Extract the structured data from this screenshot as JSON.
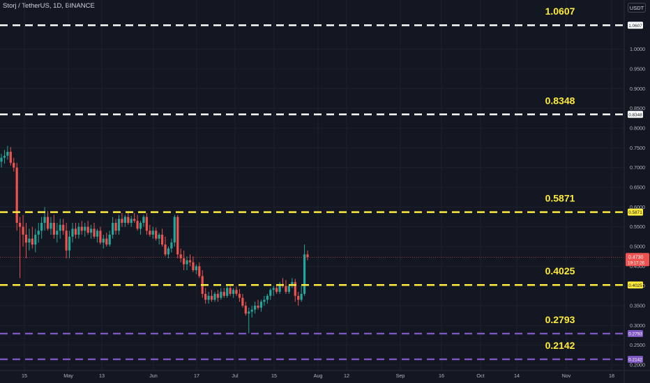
{
  "header": {
    "symbol_title": "Storj / TetherUS, 1D, BINANCE",
    "currency_label": "USDT"
  },
  "colors": {
    "background": "#131722",
    "grid": "#1e222d",
    "axis_text": "#b2b5be",
    "up": "#26a69a",
    "down": "#ef5350",
    "white_level": "#ffffff",
    "yellow_level": "#ffeb3b",
    "purple_level": "#7e57c2",
    "level_label": "#ffeb3b"
  },
  "chart_data": {
    "type": "candlestick",
    "title": "Storj / TetherUS, 1D, BINANCE",
    "y_axis": {
      "ticks": [
        "1.0000",
        "0.9500",
        "0.9000",
        "0.8500",
        "0.8000",
        "0.7500",
        "0.7000",
        "0.6500",
        "0.6000",
        "0.5500",
        "0.5000",
        "0.4500",
        "0.4000",
        "0.3500",
        "0.3000",
        "0.2500",
        "0.2000"
      ],
      "range": [
        0.195,
        1.115
      ]
    },
    "x_axis": {
      "labels": [
        "15",
        "May",
        "13",
        "Jun",
        "17",
        "Jul",
        "15",
        "Aug",
        "12",
        "Sep",
        "16",
        "Oct",
        "14",
        "Nov",
        "18"
      ]
    },
    "grid": true,
    "levels": [
      {
        "value": 1.0607,
        "label": "1.0607",
        "axis_label": "1.0607",
        "style": "white"
      },
      {
        "value": 0.8348,
        "label": "0.8348",
        "axis_label": "0.8348",
        "style": "white"
      },
      {
        "value": 0.5871,
        "label": "0.5871",
        "axis_label": "0.5871",
        "style": "yellow"
      },
      {
        "value": 0.4025,
        "label": "0.4025",
        "axis_label": "0.4025",
        "style": "yellow"
      },
      {
        "value": 0.2793,
        "label": "0.2793",
        "axis_label": "0.2793",
        "style": "purple"
      },
      {
        "value": 0.2142,
        "label": "0.2142",
        "axis_label": "0.2142",
        "style": "purple"
      }
    ],
    "last_price": {
      "value": 0.473,
      "label": "0.4730",
      "countdown": "19:17:26"
    },
    "candles": [
      [
        0.715,
        0.735,
        0.7,
        0.725
      ],
      [
        0.725,
        0.745,
        0.71,
        0.73
      ],
      [
        0.73,
        0.755,
        0.72,
        0.74
      ],
      [
        0.74,
        0.752,
        0.705,
        0.712
      ],
      [
        0.712,
        0.725,
        0.69,
        0.7
      ],
      [
        0.7,
        0.712,
        0.54,
        0.56
      ],
      [
        0.56,
        0.575,
        0.42,
        0.55
      ],
      [
        0.55,
        0.58,
        0.5,
        0.53
      ],
      [
        0.53,
        0.56,
        0.47,
        0.51
      ],
      [
        0.51,
        0.545,
        0.49,
        0.52
      ],
      [
        0.52,
        0.55,
        0.495,
        0.505
      ],
      [
        0.505,
        0.545,
        0.485,
        0.53
      ],
      [
        0.53,
        0.56,
        0.51,
        0.54
      ],
      [
        0.54,
        0.575,
        0.52,
        0.56
      ],
      [
        0.56,
        0.6,
        0.54,
        0.575
      ],
      [
        0.575,
        0.59,
        0.54,
        0.545
      ],
      [
        0.545,
        0.575,
        0.53,
        0.56
      ],
      [
        0.56,
        0.58,
        0.52,
        0.53
      ],
      [
        0.53,
        0.56,
        0.51,
        0.54
      ],
      [
        0.54,
        0.57,
        0.52,
        0.555
      ],
      [
        0.555,
        0.57,
        0.53,
        0.54
      ],
      [
        0.54,
        0.56,
        0.47,
        0.49
      ],
      [
        0.49,
        0.54,
        0.47,
        0.525
      ],
      [
        0.525,
        0.56,
        0.51,
        0.545
      ],
      [
        0.545,
        0.56,
        0.52,
        0.53
      ],
      [
        0.53,
        0.56,
        0.52,
        0.55
      ],
      [
        0.55,
        0.565,
        0.53,
        0.54
      ],
      [
        0.54,
        0.56,
        0.525,
        0.55
      ],
      [
        0.55,
        0.565,
        0.53,
        0.535
      ],
      [
        0.535,
        0.555,
        0.52,
        0.545
      ],
      [
        0.545,
        0.56,
        0.52,
        0.525
      ],
      [
        0.525,
        0.545,
        0.51,
        0.54
      ],
      [
        0.54,
        0.55,
        0.505,
        0.51
      ],
      [
        0.51,
        0.53,
        0.495,
        0.52
      ],
      [
        0.52,
        0.535,
        0.5,
        0.505
      ],
      [
        0.505,
        0.54,
        0.5,
        0.53
      ],
      [
        0.53,
        0.575,
        0.52,
        0.56
      ],
      [
        0.56,
        0.57,
        0.53,
        0.54
      ],
      [
        0.54,
        0.58,
        0.53,
        0.57
      ],
      [
        0.57,
        0.585,
        0.55,
        0.56
      ],
      [
        0.56,
        0.58,
        0.55,
        0.575
      ],
      [
        0.575,
        0.585,
        0.555,
        0.56
      ],
      [
        0.56,
        0.578,
        0.55,
        0.57
      ],
      [
        0.57,
        0.585,
        0.56,
        0.565
      ],
      [
        0.565,
        0.58,
        0.54,
        0.545
      ],
      [
        0.545,
        0.565,
        0.53,
        0.56
      ],
      [
        0.56,
        0.58,
        0.55,
        0.575
      ],
      [
        0.575,
        0.585,
        0.53,
        0.54
      ],
      [
        0.54,
        0.555,
        0.525,
        0.53
      ],
      [
        0.53,
        0.55,
        0.52,
        0.54
      ],
      [
        0.54,
        0.548,
        0.515,
        0.52
      ],
      [
        0.52,
        0.535,
        0.505,
        0.53
      ],
      [
        0.53,
        0.545,
        0.5,
        0.505
      ],
      [
        0.505,
        0.525,
        0.475,
        0.48
      ],
      [
        0.48,
        0.5,
        0.47,
        0.495
      ],
      [
        0.495,
        0.52,
        0.485,
        0.51
      ],
      [
        0.51,
        0.58,
        0.5,
        0.575
      ],
      [
        0.575,
        0.58,
        0.47,
        0.48
      ],
      [
        0.48,
        0.495,
        0.46,
        0.47
      ],
      [
        0.47,
        0.49,
        0.44,
        0.455
      ],
      [
        0.455,
        0.475,
        0.44,
        0.465
      ],
      [
        0.465,
        0.48,
        0.45,
        0.46
      ],
      [
        0.46,
        0.475,
        0.435,
        0.44
      ],
      [
        0.44,
        0.455,
        0.43,
        0.45
      ],
      [
        0.45,
        0.46,
        0.42,
        0.425
      ],
      [
        0.425,
        0.44,
        0.37,
        0.38
      ],
      [
        0.38,
        0.395,
        0.355,
        0.365
      ],
      [
        0.365,
        0.385,
        0.355,
        0.375
      ],
      [
        0.375,
        0.39,
        0.36,
        0.365
      ],
      [
        0.365,
        0.385,
        0.36,
        0.38
      ],
      [
        0.38,
        0.39,
        0.36,
        0.37
      ],
      [
        0.37,
        0.395,
        0.365,
        0.385
      ],
      [
        0.385,
        0.395,
        0.37,
        0.375
      ],
      [
        0.375,
        0.4,
        0.37,
        0.395
      ],
      [
        0.395,
        0.4,
        0.375,
        0.38
      ],
      [
        0.38,
        0.395,
        0.37,
        0.39
      ],
      [
        0.39,
        0.398,
        0.375,
        0.38
      ],
      [
        0.38,
        0.392,
        0.36,
        0.37
      ],
      [
        0.37,
        0.38,
        0.345,
        0.35
      ],
      [
        0.35,
        0.36,
        0.325,
        0.33
      ],
      [
        0.33,
        0.345,
        0.28,
        0.335
      ],
      [
        0.335,
        0.35,
        0.32,
        0.34
      ],
      [
        0.34,
        0.36,
        0.33,
        0.35
      ],
      [
        0.35,
        0.365,
        0.34,
        0.345
      ],
      [
        0.345,
        0.365,
        0.335,
        0.36
      ],
      [
        0.36,
        0.375,
        0.35,
        0.365
      ],
      [
        0.365,
        0.38,
        0.355,
        0.375
      ],
      [
        0.375,
        0.395,
        0.365,
        0.39
      ],
      [
        0.39,
        0.4,
        0.375,
        0.395
      ],
      [
        0.395,
        0.405,
        0.38,
        0.385
      ],
      [
        0.385,
        0.41,
        0.38,
        0.405
      ],
      [
        0.405,
        0.42,
        0.395,
        0.4
      ],
      [
        0.4,
        0.415,
        0.38,
        0.385
      ],
      [
        0.385,
        0.405,
        0.38,
        0.4
      ],
      [
        0.4,
        0.42,
        0.395,
        0.41
      ],
      [
        0.41,
        0.418,
        0.36,
        0.375
      ],
      [
        0.375,
        0.385,
        0.35,
        0.365
      ],
      [
        0.365,
        0.4,
        0.36,
        0.38
      ],
      [
        0.38,
        0.505,
        0.375,
        0.48
      ],
      [
        0.48,
        0.49,
        0.465,
        0.473
      ]
    ]
  }
}
